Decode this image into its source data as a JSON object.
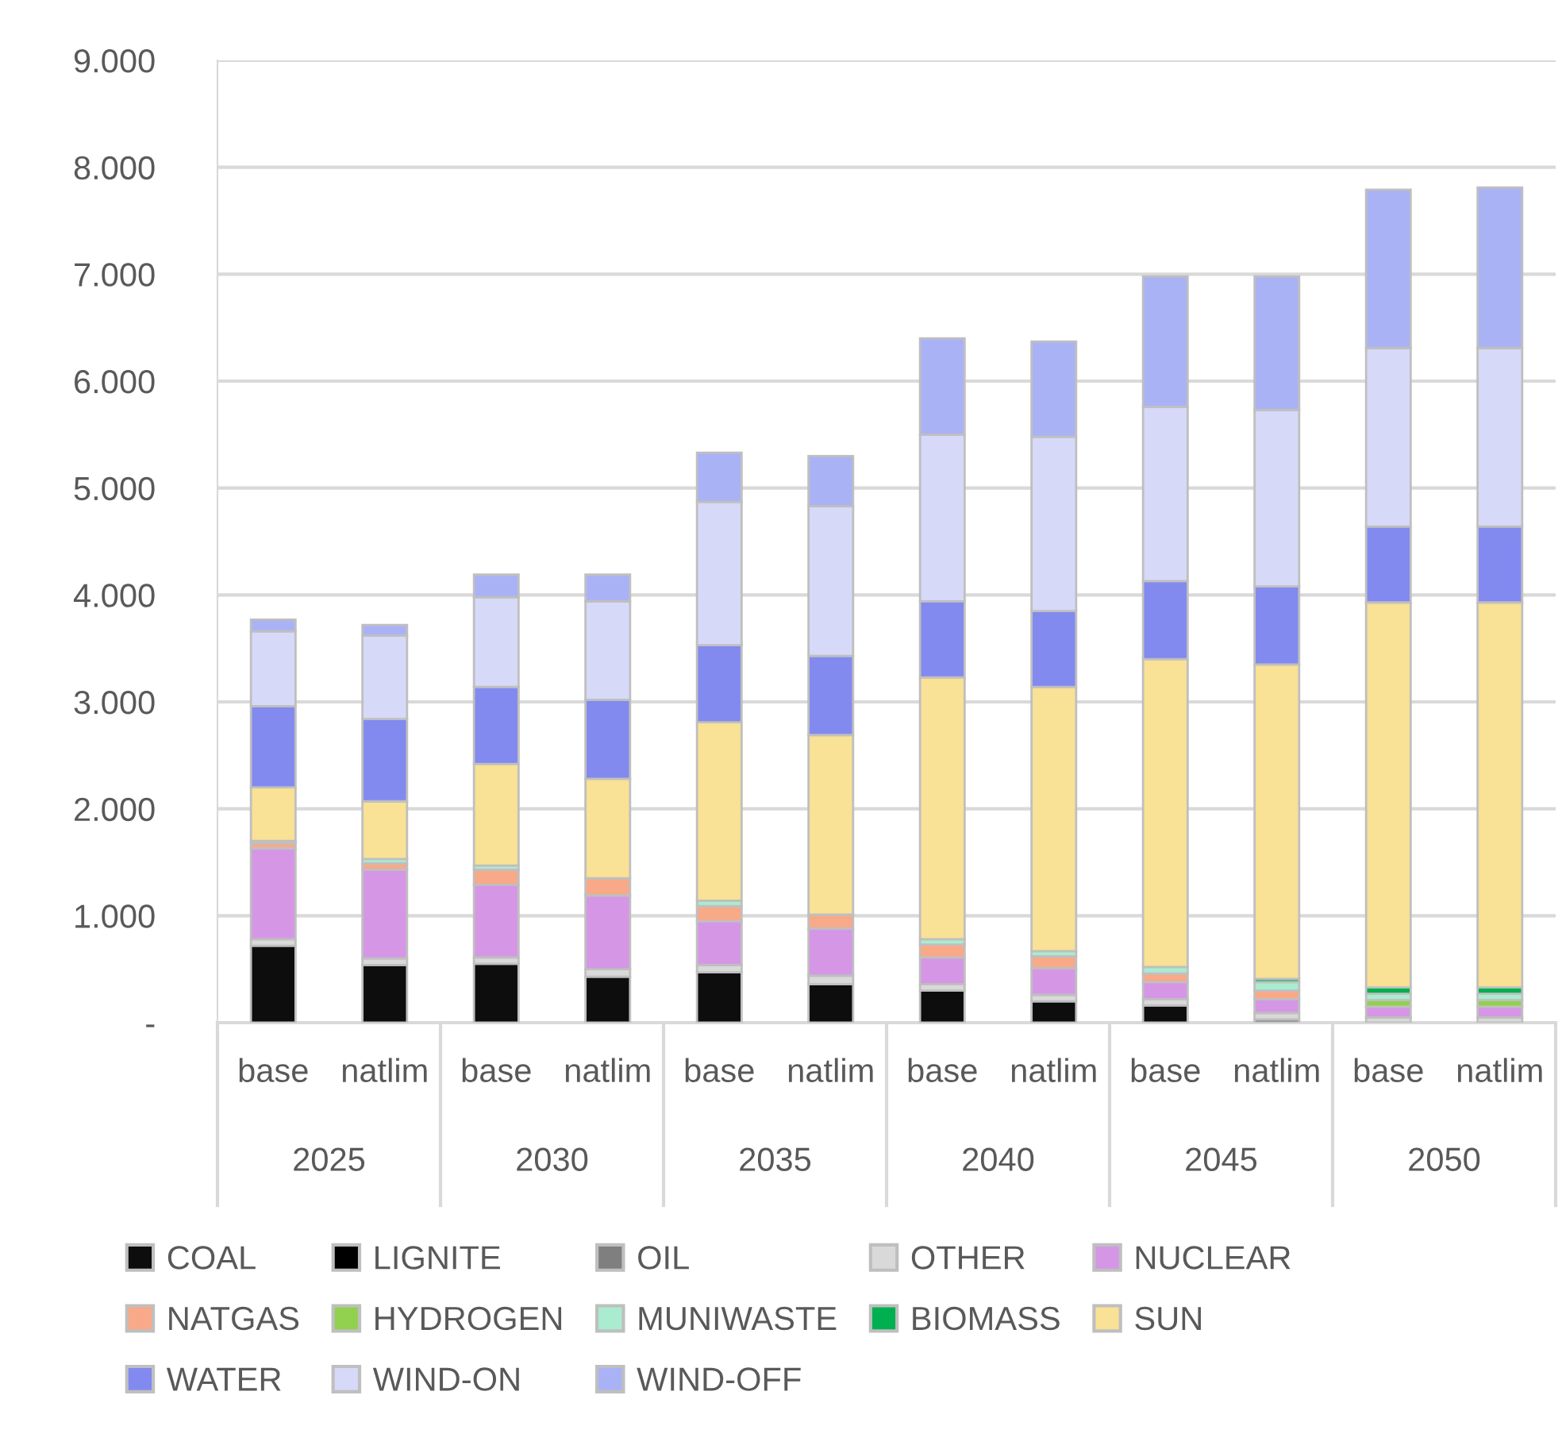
{
  "chart_data": {
    "type": "bar",
    "stacked": true,
    "categories": [
      "base",
      "natlim",
      "base",
      "natlim",
      "base",
      "natlim",
      "base",
      "natlim",
      "base",
      "natlim",
      "base",
      "natlim"
    ],
    "annotations": [
      "2025",
      "2030",
      "2035",
      "2040",
      "2045",
      "2050"
    ],
    "series": [
      {
        "name": "COAL",
        "color": "#0d0d0d",
        "values": [
          720,
          540,
          550,
          430,
          470,
          360,
          300,
          200,
          160,
          0,
          0,
          0
        ]
      },
      {
        "name": "LIGNITE",
        "color": "#000000",
        "values": [
          0,
          0,
          0,
          0,
          0,
          0,
          0,
          0,
          0,
          0,
          0,
          0
        ]
      },
      {
        "name": "OIL",
        "color": "#7f7f7f",
        "values": [
          0,
          0,
          0,
          0,
          0,
          0,
          0,
          0,
          0,
          30,
          0,
          0
        ]
      },
      {
        "name": "OTHER",
        "color": "#d9d9d9",
        "values": [
          60,
          60,
          60,
          70,
          70,
          80,
          60,
          60,
          60,
          60,
          50,
          50
        ]
      },
      {
        "name": "NUCLEAR",
        "color": "#d696e6",
        "values": [
          850,
          830,
          680,
          690,
          410,
          440,
          250,
          250,
          160,
          130,
          100,
          100
        ]
      },
      {
        "name": "NATGAS",
        "color": "#f8a987",
        "values": [
          50,
          60,
          140,
          160,
          140,
          130,
          120,
          110,
          80,
          80,
          0,
          0
        ]
      },
      {
        "name": "HYDROGEN",
        "color": "#92d050",
        "values": [
          0,
          0,
          0,
          0,
          0,
          0,
          0,
          0,
          0,
          0,
          60,
          60
        ]
      },
      {
        "name": "MUNIWASTE",
        "color": "#a9eccf",
        "values": [
          20,
          40,
          40,
          0,
          50,
          0,
          50,
          50,
          60,
          80,
          60,
          60
        ]
      },
      {
        "name": "BIOMASS",
        "color": "#00b050",
        "values": [
          0,
          0,
          0,
          0,
          0,
          0,
          0,
          0,
          0,
          30,
          60,
          60
        ]
      },
      {
        "name": "SUN",
        "color": "#f9e195",
        "values": [
          500,
          540,
          950,
          930,
          1670,
          1680,
          2450,
          2470,
          2880,
          2940,
          3600,
          3600
        ]
      },
      {
        "name": "WATER",
        "color": "#8289ef",
        "values": [
          760,
          770,
          720,
          740,
          720,
          740,
          710,
          710,
          730,
          730,
          710,
          710
        ]
      },
      {
        "name": "WIND-ON",
        "color": "#d6d9f8",
        "values": [
          700,
          780,
          840,
          920,
          1340,
          1400,
          1560,
          1630,
          1630,
          1650,
          1670,
          1670
        ]
      },
      {
        "name": "WIND-OFF",
        "color": "#aab2f6",
        "values": [
          110,
          100,
          210,
          250,
          460,
          470,
          900,
          890,
          1220,
          1250,
          1480,
          1500
        ]
      }
    ],
    "ylim": [
      0,
      9000
    ],
    "yticks": [
      {
        "value": 0,
        "label": "-"
      },
      {
        "value": 1000,
        "label": "1.000"
      },
      {
        "value": 2000,
        "label": "2.000"
      },
      {
        "value": 3000,
        "label": "3.000"
      },
      {
        "value": 4000,
        "label": "4.000"
      },
      {
        "value": 5000,
        "label": "5.000"
      },
      {
        "value": 6000,
        "label": "6.000"
      },
      {
        "value": 7000,
        "label": "7.000"
      },
      {
        "value": 8000,
        "label": "8.000"
      },
      {
        "value": 9000,
        "label": "9.000"
      }
    ],
    "grid": "y",
    "legend": "bottom"
  }
}
